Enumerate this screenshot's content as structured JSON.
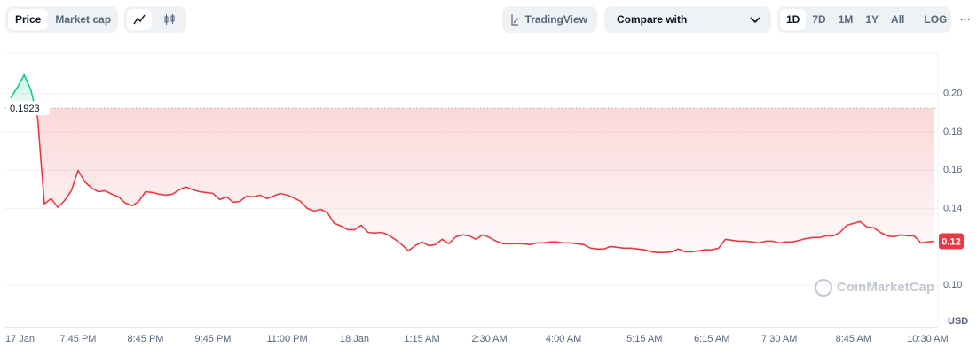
{
  "toolbar": {
    "price": "Price",
    "market_cap": "Market cap",
    "trading_view": "TradingView",
    "compare": "Compare with",
    "ranges": [
      "1D",
      "7D",
      "1M",
      "1Y",
      "All"
    ],
    "log": "LOG",
    "more": "···"
  },
  "chart_data": {
    "type": "line",
    "categories": [
      null,
      "17 Jan",
      null,
      null,
      null,
      null,
      null,
      null,
      null,
      null,
      "7:45 PM",
      null,
      null,
      null,
      null,
      null,
      null,
      null,
      null,
      null,
      "8:45 PM",
      null,
      null,
      null,
      null,
      null,
      null,
      null,
      null,
      null,
      "9:45 PM",
      null,
      null,
      null,
      null,
      null,
      null,
      null,
      null,
      null,
      null,
      "11:00 PM",
      null,
      null,
      null,
      null,
      null,
      null,
      null,
      null,
      null,
      "18 Jan",
      null,
      null,
      null,
      null,
      null,
      null,
      null,
      null,
      null,
      "1:15 AM",
      null,
      null,
      null,
      null,
      null,
      null,
      null,
      null,
      null,
      "2:30 AM",
      null,
      null,
      null,
      null,
      null,
      null,
      null,
      null,
      null,
      null,
      "4:00 AM",
      null,
      null,
      null,
      null,
      null,
      null,
      null,
      null,
      null,
      null,
      null,
      "5:15 AM",
      null,
      null,
      null,
      null,
      null,
      null,
      null,
      null,
      null,
      "6:15 AM",
      null,
      null,
      null,
      null,
      null,
      null,
      null,
      null,
      null,
      "7:30 AM",
      null,
      null,
      null,
      null,
      null,
      null,
      null,
      null,
      null,
      null,
      "8:45 AM",
      null,
      null,
      null,
      null,
      null,
      null,
      null,
      null,
      null,
      null,
      "10:30 AM",
      null
    ],
    "values": [
      0.1977,
      0.2032,
      0.2097,
      0.2018,
      0.1871,
      0.1424,
      0.1452,
      0.1406,
      0.1442,
      0.1493,
      0.1599,
      0.1539,
      0.1507,
      0.1488,
      0.1493,
      0.1475,
      0.1461,
      0.1429,
      0.1415,
      0.1438,
      0.1488,
      0.1484,
      0.1475,
      0.147,
      0.1475,
      0.1498,
      0.1512,
      0.1498,
      0.1488,
      0.1484,
      0.1479,
      0.1447,
      0.1461,
      0.1433,
      0.1438,
      0.1465,
      0.1461,
      0.147,
      0.1452,
      0.1465,
      0.1479,
      0.147,
      0.1456,
      0.1438,
      0.1401,
      0.1387,
      0.1396,
      0.1378,
      0.1323,
      0.1309,
      0.129,
      0.129,
      0.1313,
      0.1276,
      0.1272,
      0.1276,
      0.1263,
      0.124,
      0.1212,
      0.118,
      0.1207,
      0.1226,
      0.1207,
      0.1212,
      0.124,
      0.1217,
      0.1253,
      0.1263,
      0.1258,
      0.124,
      0.1263,
      0.1249,
      0.123,
      0.1217,
      0.1217,
      0.1217,
      0.1217,
      0.1212,
      0.1221,
      0.1221,
      0.1226,
      0.1226,
      0.1221,
      0.1221,
      0.1217,
      0.1212,
      0.1194,
      0.1189,
      0.1189,
      0.1203,
      0.1198,
      0.1194,
      0.1194,
      0.1189,
      0.1185,
      0.1175,
      0.1171,
      0.1171,
      0.1175,
      0.1189,
      0.1175,
      0.1175,
      0.118,
      0.1185,
      0.1185,
      0.1194,
      0.124,
      0.1235,
      0.123,
      0.123,
      0.1226,
      0.1221,
      0.123,
      0.123,
      0.1221,
      0.1226,
      0.1226,
      0.1235,
      0.1244,
      0.1249,
      0.1249,
      0.1258,
      0.1258,
      0.1276,
      0.1313,
      0.1323,
      0.1332,
      0.1304,
      0.13,
      0.1276,
      0.1258,
      0.1253,
      0.1263,
      0.1258,
      0.1258,
      0.1221,
      0.1226,
      0.123
    ],
    "reference_value": 0.1923,
    "last_price": 0.12,
    "colors": {
      "up": "#16c784",
      "down": "#ea3943"
    },
    "ylim": [
      0.078,
      0.221
    ],
    "yticks": [
      {
        "value": 0.1,
        "label": "0.10"
      },
      {
        "value": 0.14,
        "label": "0.14"
      },
      {
        "value": 0.16,
        "label": "0.16"
      },
      {
        "value": 0.18,
        "label": "0.18"
      },
      {
        "value": 0.2,
        "label": "0.20"
      }
    ],
    "grid": true,
    "unit": "USD",
    "watermark": "CoinMarketCap"
  }
}
